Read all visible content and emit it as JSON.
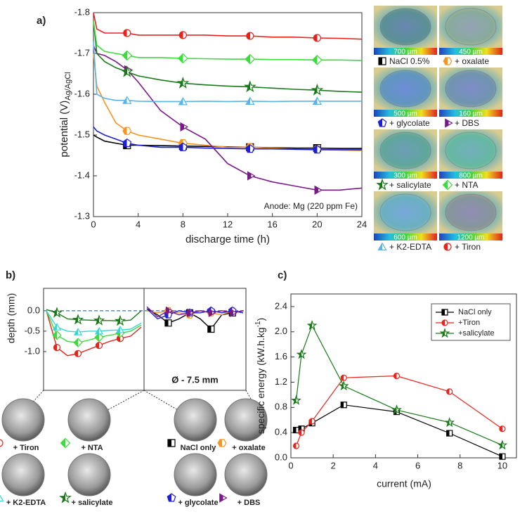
{
  "chart_data": [
    {
      "type": "line",
      "panel_label": "a)",
      "ylabel": "potential (V)",
      "ylabel_sub": "Ag/AgCl",
      "xlabel": "discharge time (h)",
      "annotation": "Anode: Mg (220 ppm Fe)",
      "xlim": [
        0,
        24
      ],
      "xticks": [
        0,
        4,
        8,
        12,
        16,
        20,
        24
      ],
      "ylim": [
        -1.3,
        -1.8
      ],
      "yticks": [
        -1.8,
        -1.7,
        -1.6,
        -1.5,
        -1.4,
        -1.3
      ],
      "x": [
        0,
        0.3,
        1,
        2,
        3,
        4,
        6,
        8,
        10,
        12,
        14,
        16,
        18,
        20,
        22,
        24
      ],
      "series": [
        {
          "name": "NaCl 0.5%",
          "color": "#000000",
          "marker": "square",
          "values": [
            -1.5,
            -1.495,
            -1.485,
            -1.48,
            -1.475,
            -1.475,
            -1.474,
            -1.473,
            -1.472,
            -1.471,
            -1.47,
            -1.469,
            -1.468,
            -1.468,
            -1.467,
            -1.467
          ]
        },
        {
          "name": "+ oxalate",
          "color": "#f7931e",
          "marker": "hexagon",
          "values": [
            -1.7,
            -1.62,
            -1.58,
            -1.53,
            -1.51,
            -1.5,
            -1.49,
            -1.48,
            -1.475,
            -1.47,
            -1.47,
            -1.468,
            -1.465,
            -1.465,
            -1.463,
            -1.462
          ]
        },
        {
          "name": "+ glycolate",
          "color": "#1f1fd6",
          "marker": "pentagon",
          "values": [
            -1.52,
            -1.51,
            -1.5,
            -1.49,
            -1.48,
            -1.475,
            -1.47,
            -1.47,
            -1.468,
            -1.467,
            -1.466,
            -1.466,
            -1.465,
            -1.464,
            -1.464,
            -1.464
          ]
        },
        {
          "name": "+ DBS",
          "color": "#7a1a8a",
          "marker": "triangle-right",
          "values": [
            -1.72,
            -1.7,
            -1.695,
            -1.68,
            -1.66,
            -1.63,
            -1.56,
            -1.52,
            -1.49,
            -1.43,
            -1.4,
            -1.385,
            -1.375,
            -1.365,
            -1.365,
            -1.37
          ]
        },
        {
          "name": "+ salicylate",
          "color": "#1a7a1a",
          "marker": "star",
          "values": [
            -1.78,
            -1.7,
            -1.68,
            -1.665,
            -1.655,
            -1.645,
            -1.635,
            -1.627,
            -1.623,
            -1.62,
            -1.618,
            -1.615,
            -1.612,
            -1.61,
            -1.607,
            -1.605
          ]
        },
        {
          "name": "+ NTA",
          "color": "#3ddc3d",
          "marker": "diamond",
          "values": [
            -1.78,
            -1.72,
            -1.705,
            -1.7,
            -1.695,
            -1.69,
            -1.69,
            -1.688,
            -1.687,
            -1.686,
            -1.686,
            -1.685,
            -1.685,
            -1.684,
            -1.684,
            -1.683
          ]
        },
        {
          "name": "+ K2-EDTA",
          "color": "#5ab4e8",
          "marker": "triangle",
          "values": [
            -1.73,
            -1.6,
            -1.59,
            -1.585,
            -1.585,
            -1.583,
            -1.582,
            -1.582,
            -1.583,
            -1.582,
            -1.583,
            -1.582,
            -1.583,
            -1.583,
            -1.583,
            -1.583
          ]
        },
        {
          "name": "+ Tiron",
          "color": "#e8231c",
          "marker": "circle",
          "values": [
            -1.8,
            -1.76,
            -1.75,
            -1.75,
            -1.75,
            -1.745,
            -1.745,
            -1.745,
            -1.745,
            -1.743,
            -1.743,
            -1.74,
            -1.74,
            -1.738,
            -1.737,
            -1.735
          ]
        }
      ],
      "scale_labels": [
        "700 µm",
        "450 µm",
        "500 µm",
        "160 µm",
        "300 µm",
        "800 µm",
        "600 µm",
        "1200 µm"
      ]
    },
    {
      "type": "profile",
      "panel_label": "b)",
      "ylabel": "depth (mm)",
      "ylim": [
        -1.95,
        0.55
      ],
      "yticks": [
        {
          "value": 0,
          "label": "0.0"
        },
        -0.5,
        {
          "value": -1,
          "label": "-1.0"
        }
      ],
      "subplots": [
        {
          "series": [
            {
              "name": "+ Tiron",
              "color": "#e8231c",
              "marker": "circle",
              "values": [
                0.0,
                -0.9,
                -1.1,
                -1.05,
                -0.95,
                -0.85,
                -0.75,
                -0.68,
                -0.62,
                -0.4
              ]
            },
            {
              "name": "+ NTA",
              "color": "#3ddc3d",
              "marker": "diamond",
              "values": [
                0.0,
                -0.6,
                -0.75,
                -0.78,
                -0.72,
                -0.65,
                -0.6,
                -0.55,
                -0.5,
                -0.35
              ]
            },
            {
              "name": "+ K2-EDTA",
              "color": "#33d6d6",
              "marker": "triangle",
              "values": [
                0.0,
                -0.4,
                -0.5,
                -0.52,
                -0.5,
                -0.5,
                -0.48,
                -0.47,
                -0.45,
                -0.3
              ]
            },
            {
              "name": "+ salicylate",
              "color": "#1a7a1a",
              "marker": "star",
              "values": [
                0.03,
                -0.05,
                -0.2,
                -0.22,
                -0.23,
                -0.24,
                -0.24,
                -0.25,
                -0.23,
                0.0
              ]
            }
          ]
        },
        {
          "annotation": "Ø - 7.5 mm",
          "series": [
            {
              "name": "NaCl only",
              "color": "#000000",
              "marker": "square",
              "values": [
                0.05,
                -0.1,
                -0.3,
                -0.2,
                -0.05,
                -0.2,
                -0.45,
                -0.1,
                -0.05,
                0.0
              ]
            },
            {
              "name": "+ oxalate",
              "color": "#f7931e",
              "marker": "hexagon",
              "values": [
                0.0,
                -0.05,
                0.0,
                -0.05,
                -0.1,
                0.0,
                -0.05,
                -0.1,
                0.0,
                -0.05
              ]
            },
            {
              "name": "+ glycolate",
              "color": "#1f1fd6",
              "marker": "pentagon",
              "values": [
                0.05,
                -0.2,
                -0.1,
                0.0,
                -0.05,
                -0.05,
                0.0,
                -0.05,
                0.0,
                -0.05
              ]
            },
            {
              "name": "+ DBS",
              "color": "#7a1a8a",
              "marker": "triangle-right",
              "values": [
                0.1,
                -0.15,
                0.0,
                -0.1,
                -0.05,
                0.0,
                -0.05,
                0.0,
                -0.05,
                0.0
              ]
            }
          ]
        }
      ]
    },
    {
      "type": "line",
      "panel_label": "c)",
      "ylabel": "specific energy (kW.h.kg",
      "ylabel_sup": "-1",
      "ylabel_end": ")",
      "xlabel": "current (mA)",
      "legend": "top-right",
      "xlim": [
        0,
        10.7
      ],
      "xticks": [
        0,
        2,
        4,
        6,
        8,
        10
      ],
      "ylim": [
        0,
        2.6
      ],
      "yticks": [
        {
          "value": 0,
          "label": "0.0"
        },
        0.4,
        0.8,
        1.2,
        1.6,
        {
          "value": 2,
          "label": "2.0"
        },
        2.4
      ],
      "x": [
        0.25,
        0.5,
        1,
        2.5,
        5,
        7.5,
        10
      ],
      "series": [
        {
          "name": "NaCl only",
          "color": "#000000",
          "marker": "square",
          "values": [
            0.44,
            0.46,
            0.55,
            0.84,
            0.73,
            0.39,
            0.02
          ]
        },
        {
          "name": "+Tiron",
          "color": "#e8231c",
          "marker": "circle",
          "values": [
            0.19,
            0.4,
            0.58,
            1.27,
            1.3,
            1.05,
            0.46
          ]
        },
        {
          "name": "+salicylate",
          "color": "#1a7a1a",
          "marker": "star",
          "values": [
            0.91,
            1.64,
            2.1,
            1.14,
            0.76,
            0.56,
            0.2
          ]
        }
      ]
    }
  ]
}
